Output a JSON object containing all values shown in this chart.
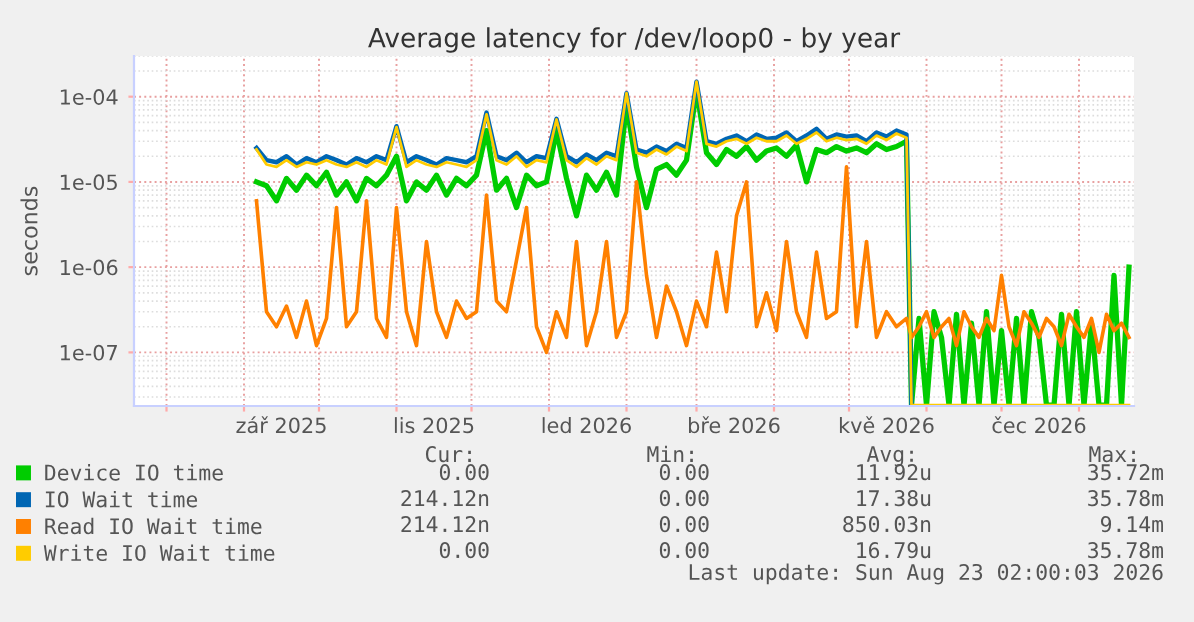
{
  "chart_data": {
    "type": "line",
    "title": "Average latency for /dev/loop0 - by year",
    "ylabel": "seconds",
    "log": "y",
    "grid": true,
    "legend": "bottom",
    "marker": "none",
    "line_style": "solid",
    "xlim": [
      "2025-07-19",
      "2026-08-23"
    ],
    "xticks": [
      {
        "value": "2025-08-01",
        "label": null
      },
      {
        "value": "2025-09-01",
        "label": null
      },
      {
        "value": "2025-09-16",
        "label": "zář 2025"
      },
      {
        "value": "2025-10-01",
        "label": null
      },
      {
        "value": "2025-11-01",
        "label": null
      },
      {
        "value": "2025-11-16",
        "label": "lis 2025"
      },
      {
        "value": "2025-12-01",
        "label": null
      },
      {
        "value": "2026-01-01",
        "label": null
      },
      {
        "value": "2026-01-16",
        "label": "led 2026"
      },
      {
        "value": "2026-02-01",
        "label": null
      },
      {
        "value": "2026-03-01",
        "label": null
      },
      {
        "value": "2026-03-16",
        "label": "bře 2026"
      },
      {
        "value": "2026-04-01",
        "label": null
      },
      {
        "value": "2026-05-01",
        "label": null
      },
      {
        "value": "2026-05-16",
        "label": "kvě 2026"
      },
      {
        "value": "2026-06-01",
        "label": null
      },
      {
        "value": "2026-07-01",
        "label": null
      },
      {
        "value": "2026-07-16",
        "label": "čec 2026"
      },
      {
        "value": "2026-08-01",
        "label": null
      }
    ],
    "ylim": [
      2.35e-08,
      0.0003
    ],
    "yticks": [
      {
        "value": 1e-07,
        "label": "1e-07"
      },
      {
        "value": 1e-06,
        "label": "1e-06"
      },
      {
        "value": 1e-05,
        "label": "1e-05"
      },
      {
        "value": 0.0001,
        "label": "1e-04"
      }
    ],
    "x": [
      "2025-09-06",
      "2025-09-10",
      "2025-09-14",
      "2025-09-18",
      "2025-09-22",
      "2025-09-26",
      "2025-09-30",
      "2025-10-04",
      "2025-10-08",
      "2025-10-12",
      "2025-10-16",
      "2025-10-20",
      "2025-10-24",
      "2025-10-28",
      "2025-11-01",
      "2025-11-05",
      "2025-11-09",
      "2025-11-13",
      "2025-11-17",
      "2025-11-21",
      "2025-11-25",
      "2025-11-29",
      "2025-12-03",
      "2025-12-07",
      "2025-12-11",
      "2025-12-15",
      "2025-12-19",
      "2025-12-23",
      "2025-12-27",
      "2025-12-31",
      "2026-01-04",
      "2026-01-08",
      "2026-01-12",
      "2026-01-16",
      "2026-01-20",
      "2026-01-24",
      "2026-01-28",
      "2026-02-01",
      "2026-02-05",
      "2026-02-09",
      "2026-02-13",
      "2026-02-17",
      "2026-02-21",
      "2026-02-25",
      "2026-03-01",
      "2026-03-05",
      "2026-03-09",
      "2026-03-13",
      "2026-03-17",
      "2026-03-21",
      "2026-03-25",
      "2026-03-29",
      "2026-04-02",
      "2026-04-06",
      "2026-04-10",
      "2026-04-14",
      "2026-04-18",
      "2026-04-22",
      "2026-04-26",
      "2026-04-30",
      "2026-05-04",
      "2026-05-08",
      "2026-05-12",
      "2026-05-16",
      "2026-05-20",
      "2026-05-24",
      "2026-05-26",
      "2026-05-29",
      "2026-06-01",
      "2026-06-04",
      "2026-06-07",
      "2026-06-10",
      "2026-06-13",
      "2026-06-16",
      "2026-06-19",
      "2026-06-22",
      "2026-06-25",
      "2026-06-28",
      "2026-07-01",
      "2026-07-04",
      "2026-07-07",
      "2026-07-10",
      "2026-07-13",
      "2026-07-16",
      "2026-07-19",
      "2026-07-22",
      "2026-07-25",
      "2026-07-28",
      "2026-07-31",
      "2026-08-03",
      "2026-08-06",
      "2026-08-09",
      "2026-08-12",
      "2026-08-15",
      "2026-08-18",
      "2026-08-21"
    ],
    "series": [
      {
        "name": "Device IO time",
        "color": "#00cc00",
        "values": [
          1e-05,
          9e-06,
          6e-06,
          1.1e-05,
          8e-06,
          1.2e-05,
          9e-06,
          1.3e-05,
          7e-06,
          1e-05,
          6e-06,
          1.1e-05,
          9e-06,
          1.2e-05,
          2e-05,
          6e-06,
          1e-05,
          8e-06,
          1.2e-05,
          7e-06,
          1.1e-05,
          9e-06,
          1.2e-05,
          4e-05,
          8e-06,
          1.1e-05,
          5e-06,
          1.2e-05,
          9e-06,
          1e-05,
          4e-05,
          1.1e-05,
          4e-06,
          1.2e-05,
          8e-06,
          1.3e-05,
          7e-06,
          8e-05,
          1.5e-05,
          5e-06,
          1.4e-05,
          1.6e-05,
          1.2e-05,
          1.8e-05,
          0.00012,
          2.2e-05,
          1.6e-05,
          2.4e-05,
          2e-05,
          2.6e-05,
          1.8e-05,
          2.3e-05,
          2.5e-05,
          2e-05,
          2.7e-05,
          1e-05,
          2.4e-05,
          2.2e-05,
          2.6e-05,
          2.3e-05,
          2.5e-05,
          2.2e-05,
          2.8e-05,
          2.4e-05,
          2.6e-05,
          3e-05,
          2.4e-08,
          2.5e-07,
          2.4e-08,
          3e-07,
          1.5e-07,
          2.4e-08,
          2.8e-07,
          2.4e-08,
          2.2e-07,
          2.4e-08,
          3e-07,
          2.4e-08,
          1.8e-07,
          2.4e-08,
          2.5e-07,
          2.4e-08,
          3e-07,
          1.5e-07,
          2.4e-08,
          2.4e-08,
          2.8e-07,
          2.4e-08,
          3e-07,
          2.4e-08,
          2.2e-07,
          2.4e-08,
          2.4e-08,
          8e-07,
          2.4e-08,
          1e-06
        ]
      },
      {
        "name": "IO Wait time",
        "color": "#0066b3",
        "values": [
          2.5e-05,
          1.8e-05,
          1.7e-05,
          2e-05,
          1.6e-05,
          1.9e-05,
          1.7e-05,
          2e-05,
          1.8e-05,
          1.6e-05,
          1.9e-05,
          1.7e-05,
          2e-05,
          1.8e-05,
          4.5e-05,
          1.7e-05,
          2e-05,
          1.8e-05,
          1.6e-05,
          1.9e-05,
          1.8e-05,
          1.7e-05,
          2e-05,
          6.5e-05,
          2e-05,
          1.8e-05,
          2.2e-05,
          1.7e-05,
          2e-05,
          1.9e-05,
          5.5e-05,
          2e-05,
          1.7e-05,
          2.1e-05,
          1.8e-05,
          2.2e-05,
          2e-05,
          0.00011,
          2.4e-05,
          2.2e-05,
          2.6e-05,
          2.3e-05,
          2.8e-05,
          2.5e-05,
          0.00015,
          3e-05,
          2.8e-05,
          3.2e-05,
          3.5e-05,
          3e-05,
          3.6e-05,
          3.2e-05,
          3.3e-05,
          3.8e-05,
          3e-05,
          3.5e-05,
          4.2e-05,
          3.2e-05,
          3.6e-05,
          3.4e-05,
          3.5e-05,
          3e-05,
          3.8e-05,
          3.4e-05,
          4e-05,
          3.6e-05,
          2.4e-08,
          null,
          null,
          null,
          null,
          null,
          null,
          null,
          null,
          null,
          null,
          null,
          null,
          null,
          null,
          null,
          null,
          null,
          null,
          null,
          null,
          null,
          null,
          null,
          null,
          null,
          null,
          null,
          null,
          null
        ]
      },
      {
        "name": "Read IO Wait time",
        "color": "#ff8000",
        "values": [
          6e-06,
          3e-07,
          2e-07,
          3.5e-07,
          1.5e-07,
          4e-07,
          1.2e-07,
          2.5e-07,
          5e-06,
          2e-07,
          3e-07,
          6e-06,
          2.5e-07,
          1.5e-07,
          5e-06,
          3e-07,
          1.2e-07,
          2e-06,
          3e-07,
          1.5e-07,
          4e-07,
          2.5e-07,
          3e-07,
          7e-06,
          4e-07,
          3e-07,
          1.2e-06,
          5e-06,
          2e-07,
          1e-07,
          3e-07,
          1.5e-07,
          2e-06,
          1.2e-07,
          3e-07,
          2e-06,
          1.5e-07,
          3e-07,
          1e-05,
          8e-07,
          1.5e-07,
          6e-07,
          3e-07,
          1.2e-07,
          4e-07,
          2e-07,
          1.5e-06,
          3e-07,
          4e-06,
          1e-05,
          2e-07,
          5e-07,
          1.8e-07,
          2e-06,
          3e-07,
          1.5e-07,
          1.5e-06,
          2.5e-07,
          3e-07,
          1.5e-05,
          2e-07,
          2e-06,
          1.5e-07,
          3e-07,
          2e-07,
          2.5e-07,
          1.5e-07,
          2e-07,
          3e-07,
          1.5e-07,
          2e-07,
          2.5e-07,
          1.2e-07,
          3e-07,
          2e-07,
          1.5e-07,
          2.5e-07,
          1.8e-07,
          8e-07,
          2e-07,
          1.2e-07,
          3e-07,
          2.2e-07,
          1.5e-07,
          2.5e-07,
          2e-07,
          1.2e-07,
          2.8e-07,
          2e-07,
          1.5e-07,
          2.5e-07,
          1e-07,
          2.8e-07,
          1.8e-07,
          2.2e-07,
          1.5e-07
        ]
      },
      {
        "name": "Write IO Wait time",
        "color": "#ffcc00",
        "values": [
          2.4e-05,
          1.6e-05,
          1.5e-05,
          1.8e-05,
          1.5e-05,
          1.7e-05,
          1.6e-05,
          1.8e-05,
          1.6e-05,
          1.5e-05,
          1.7e-05,
          1.5e-05,
          1.8e-05,
          1.6e-05,
          4.4e-05,
          1.5e-05,
          1.8e-05,
          1.6e-05,
          1.5e-05,
          1.7e-05,
          1.6e-05,
          1.5e-05,
          1.8e-05,
          6.2e-05,
          1.8e-05,
          1.6e-05,
          2e-05,
          1.5e-05,
          1.8e-05,
          1.7e-05,
          5.4e-05,
          1.8e-05,
          1.5e-05,
          1.9e-05,
          1.6e-05,
          2e-05,
          1.8e-05,
          0.00011,
          2.2e-05,
          2e-05,
          2.4e-05,
          2.1e-05,
          2.6e-05,
          2.3e-05,
          0.00015,
          2.8e-05,
          2.6e-05,
          3e-05,
          3.2e-05,
          2.8e-05,
          3.3e-05,
          3e-05,
          3e-05,
          3.5e-05,
          2.8e-05,
          3.2e-05,
          3.8e-05,
          3e-05,
          3.3e-05,
          3.1e-05,
          3.2e-05,
          2.8e-05,
          3.5e-05,
          3.1e-05,
          3.7e-05,
          3.3e-05,
          2.4e-08,
          2.4e-08,
          2.4e-08,
          2.4e-08,
          2.4e-08,
          2.4e-08,
          2.4e-08,
          2.4e-08,
          2.4e-08,
          2.4e-08,
          2.4e-08,
          2.4e-08,
          2.4e-08,
          2.4e-08,
          2.4e-08,
          2.4e-08,
          2.4e-08,
          2.4e-08,
          2.4e-08,
          2.4e-08,
          2.4e-08,
          2.4e-08,
          2.4e-08,
          2.4e-08,
          2.4e-08,
          2.4e-08,
          2.4e-08,
          2.4e-08,
          2.4e-08,
          2.4e-08
        ]
      }
    ],
    "annotations": [
      "Cur:",
      "Min:",
      "Avg:",
      "Max:",
      "0.00",
      "0.00",
      "11.92u",
      "35.72m",
      "214.12n",
      "0.00",
      "17.38u",
      "35.78m",
      "214.12n",
      "0.00",
      "850.03n",
      "9.14m",
      "0.00",
      "0.00",
      "16.79u",
      "35.78m",
      "Last update: Sun Aug 23 02:00:03 2026"
    ]
  }
}
